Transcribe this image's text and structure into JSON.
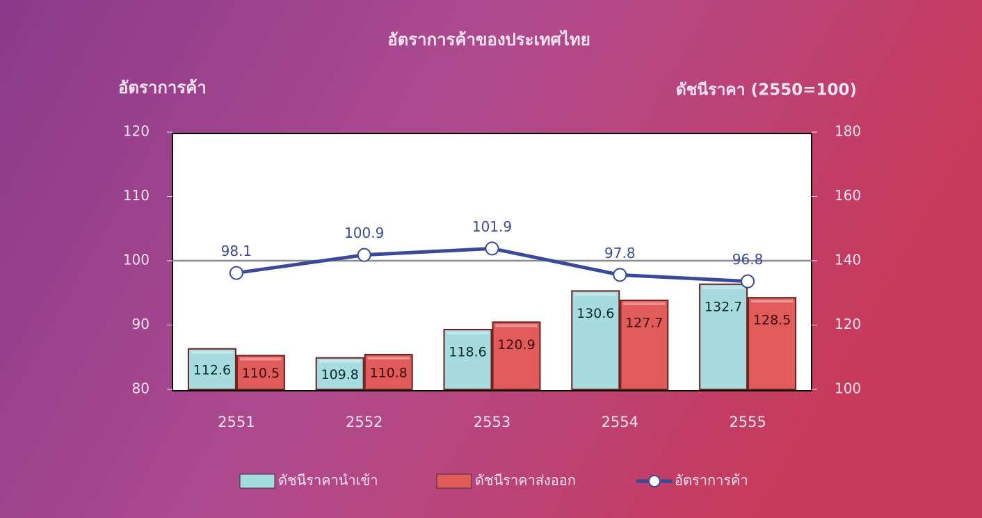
{
  "chart_data": {
    "type": "bar",
    "title": "อัตราการค้าของประเทศไทย",
    "y_label": "อัตราการค้า",
    "y2_label": "ดัชนีราคา (2550=100)",
    "categories": [
      "2551",
      "2552",
      "2553",
      "2554",
      "2555"
    ],
    "series": [
      {
        "name": "ดัชนีราคานำเข้า",
        "color": "#a6dbe0",
        "axis": "y2",
        "values": [
          112.6,
          109.8,
          118.6,
          130.6,
          132.7
        ]
      },
      {
        "name": "ดัชนีราคาส่งออก",
        "color": "#e25b5b",
        "axis": "y2",
        "values": [
          110.5,
          110.8,
          120.9,
          127.7,
          128.5
        ]
      },
      {
        "name": "อัตราการค้า",
        "type": "line",
        "color": "#3a4a9a",
        "axis": "y",
        "values": [
          98.1,
          100.9,
          101.9,
          97.8,
          96.8
        ]
      }
    ],
    "ylim": [
      80,
      120
    ],
    "yticks": [
      80,
      90,
      100,
      110,
      120
    ],
    "y2lim": [
      100,
      180
    ],
    "y2ticks": [
      100,
      120,
      140,
      160,
      180
    ],
    "hline": 100
  }
}
